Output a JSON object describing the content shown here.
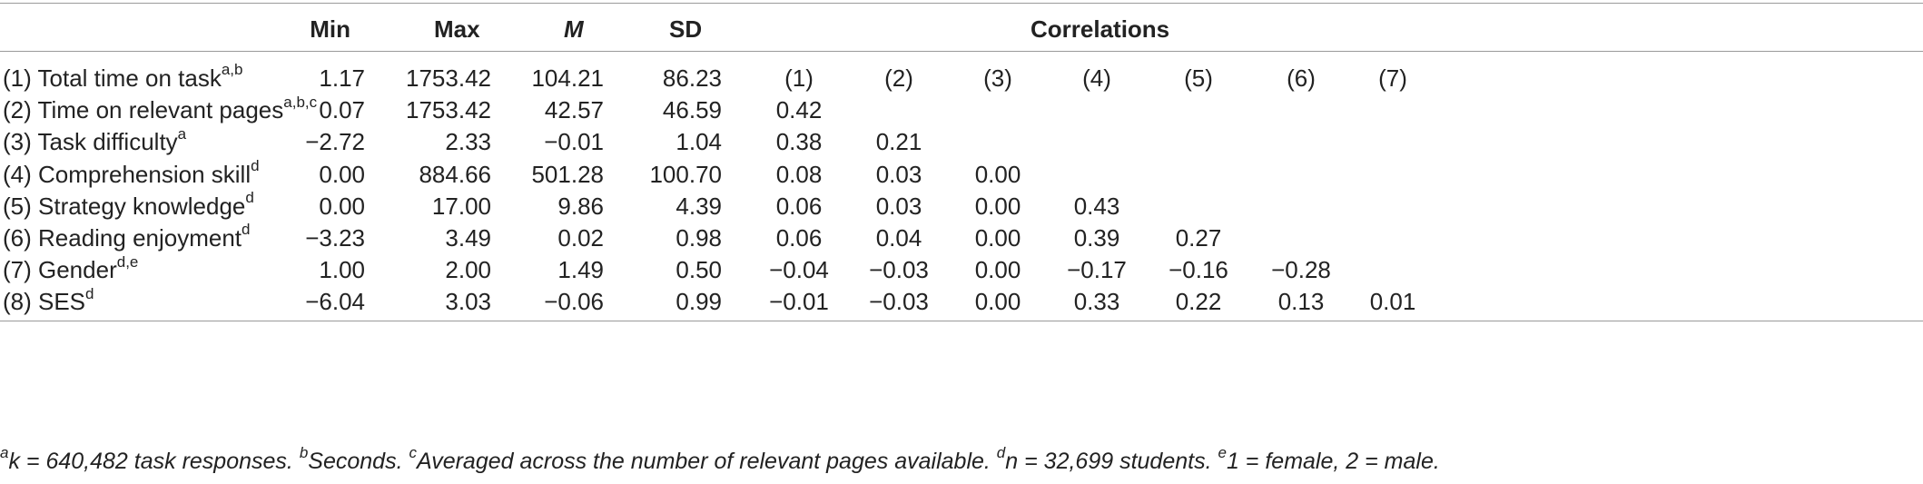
{
  "headers": {
    "min": "Min",
    "max": "Max",
    "mean": "M",
    "sd": "SD",
    "correlations": "Correlations"
  },
  "corr_cols": [
    "(1)",
    "(2)",
    "(3)",
    "(4)",
    "(5)",
    "(6)",
    "(7)"
  ],
  "rows": [
    {
      "label": "(1) Total time on task",
      "sup": "a,b",
      "min": "1.17",
      "max": "1753.42",
      "mean": "104.21",
      "sd": "86.23",
      "corr": [
        "",
        "",
        "",
        "",
        "",
        "",
        ""
      ]
    },
    {
      "label": "(2) Time on relevant pages",
      "sup": "a,b,c",
      "min": "0.07",
      "max": "1753.42",
      "mean": "42.57",
      "sd": "46.59",
      "corr": [
        "0.42",
        "",
        "",
        "",
        "",
        "",
        ""
      ]
    },
    {
      "label": "(3) Task difficulty",
      "sup": "a",
      "min": "−2.72",
      "max": "2.33",
      "mean": "−0.01",
      "sd": "1.04",
      "corr": [
        "0.38",
        "0.21",
        "",
        "",
        "",
        "",
        ""
      ]
    },
    {
      "label": "(4) Comprehension skill",
      "sup": "d",
      "min": "0.00",
      "max": "884.66",
      "mean": "501.28",
      "sd": "100.70",
      "corr": [
        "0.08",
        "0.03",
        "0.00",
        "",
        "",
        "",
        ""
      ]
    },
    {
      "label": "(5) Strategy knowledge",
      "sup": "d",
      "min": "0.00",
      "max": "17.00",
      "mean": "9.86",
      "sd": "4.39",
      "corr": [
        "0.06",
        "0.03",
        "0.00",
        "0.43",
        "",
        "",
        ""
      ]
    },
    {
      "label": "(6) Reading enjoyment",
      "sup": "d",
      "min": "−3.23",
      "max": "3.49",
      "mean": "0.02",
      "sd": "0.98",
      "corr": [
        "0.06",
        "0.04",
        "0.00",
        "0.39",
        "0.27",
        "",
        ""
      ]
    },
    {
      "label": "(7) Gender",
      "sup": "d,e",
      "min": "1.00",
      "max": "2.00",
      "mean": "1.49",
      "sd": "0.50",
      "corr": [
        "−0.04",
        "−0.03",
        "0.00",
        "−0.17",
        "−0.16",
        "−0.28",
        ""
      ]
    },
    {
      "label": "(8) SES",
      "sup": "d",
      "min": "−6.04",
      "max": "3.03",
      "mean": "−0.06",
      "sd": "0.99",
      "corr": [
        "−0.01",
        "−0.03",
        "0.00",
        "0.33",
        "0.22",
        "0.13",
        "0.01"
      ]
    }
  ],
  "footnote": [
    {
      "sup": "a",
      "text": "k = 640,482 task responses. "
    },
    {
      "sup": "b",
      "text": "Seconds. "
    },
    {
      "sup": "c",
      "text": "Averaged across the number of relevant pages available. "
    },
    {
      "sup": "d",
      "text": "n = 32,699 students. "
    },
    {
      "sup": "e",
      "text": "1 = female, 2 = male."
    }
  ]
}
